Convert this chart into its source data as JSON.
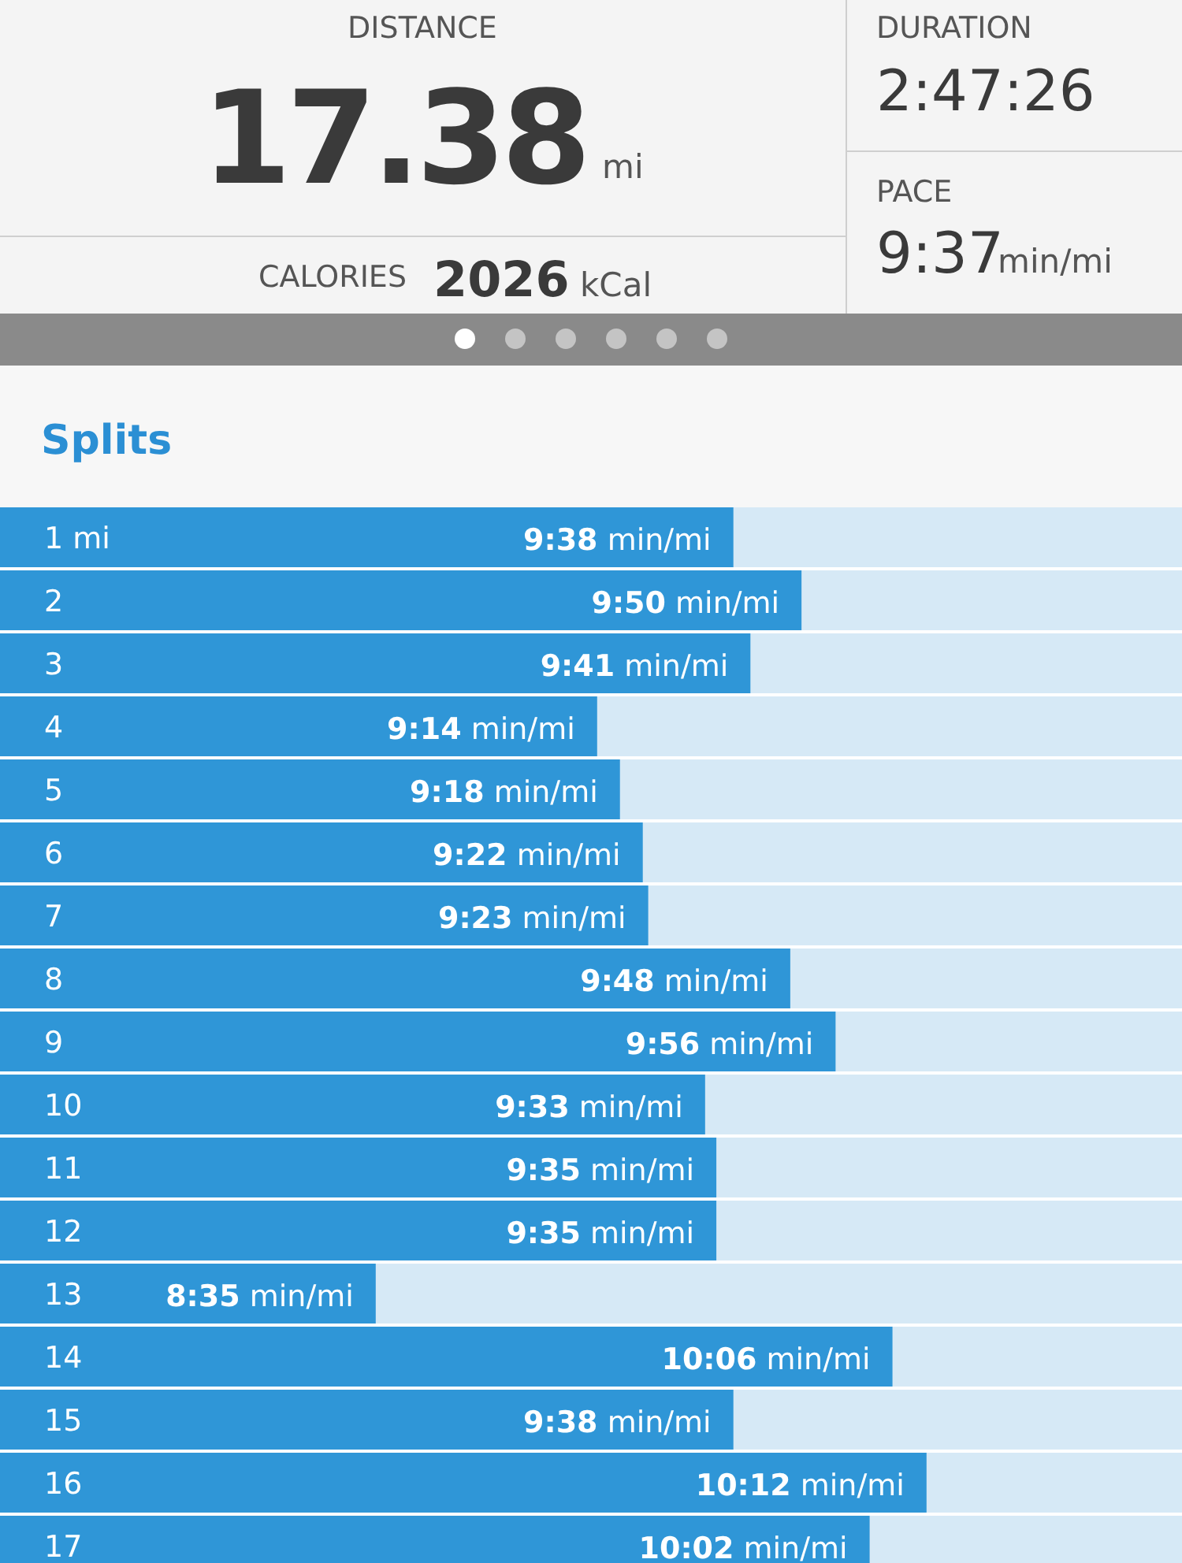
{
  "chart_data": [
    {
      "type": "other",
      "annotations": [
        "DISTANCE",
        "17.38",
        "mi",
        "CALORIES",
        "2026",
        "kCal",
        "DURATION",
        "2:47:26",
        "PACE",
        "9:37",
        "min/mi"
      ]
    },
    {
      "type": "bar",
      "title": "Splits",
      "orientation": "horizontal",
      "color": "#2f96d7",
      "xlim": [
        7.48,
        10.95
      ],
      "categories": [
        "1 mi",
        "2",
        "3",
        "4",
        "5",
        "6",
        "7",
        "8",
        "9",
        "10",
        "11",
        "12",
        "13",
        "14",
        "15",
        "16",
        "17"
      ],
      "values": [
        9.633,
        9.833,
        9.683,
        9.233,
        9.3,
        9.367,
        9.383,
        9.8,
        9.933,
        9.55,
        9.583,
        9.583,
        8.583,
        10.1,
        9.633,
        10.2,
        10.033
      ],
      "value_labels": [
        "9:38 min/mi",
        "9:50 min/mi",
        "9:41 min/mi",
        "9:14 min/mi",
        "9:18 min/mi",
        "9:22 min/mi",
        "9:23 min/mi",
        "9:48 min/mi",
        "9:56 min/mi",
        "9:33 min/mi",
        "9:35 min/mi",
        "9:35 min/mi",
        "8:35 min/mi",
        "10:06 min/mi",
        "9:38 min/mi",
        "10:12 min/mi",
        "10:02 min/mi"
      ]
    }
  ]
}
